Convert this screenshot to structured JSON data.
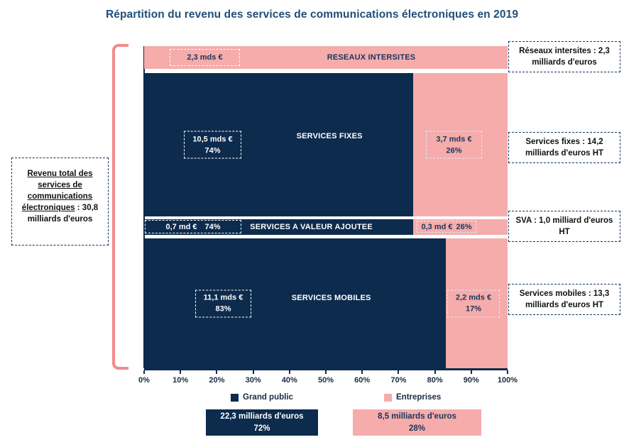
{
  "chart_data": {
    "type": "bar",
    "orientation": "horizontal",
    "stacked": true,
    "title": "Répartition du revenu des services de communications électroniques en 2019",
    "x_axis": {
      "range": [
        0,
        100
      ],
      "grid": false,
      "ticks": [
        "0%",
        "10%",
        "20%",
        "30%",
        "40%",
        "50%",
        "60%",
        "70%",
        "80%",
        "90%",
        "100%"
      ]
    },
    "legend": {
      "position": "bottom",
      "entries": [
        {
          "label": "Grand public",
          "color": "#0d2b4d"
        },
        {
          "label": "Entreprises",
          "color": "#f5acab"
        }
      ]
    },
    "rows": [
      {
        "category": "RESEAUX INTERSITES",
        "segments": [
          {
            "series": "Entreprises",
            "pct": 100,
            "value": "2,3 mds €",
            "pct_label": ""
          }
        ]
      },
      {
        "category": "SERVICES FIXES",
        "segments": [
          {
            "series": "Grand public",
            "pct": 74,
            "value": "10,5 mds €",
            "pct_label": "74%"
          },
          {
            "series": "Entreprises",
            "pct": 26,
            "value": "3,7 mds €",
            "pct_label": "26%"
          }
        ]
      },
      {
        "category": "SERVICES A VALEUR AJOUTEE",
        "segments": [
          {
            "series": "Grand public",
            "pct": 74,
            "value": "0,7 md €",
            "pct_label": "74%"
          },
          {
            "series": "Entreprises",
            "pct": 26,
            "value": "0,3 md €",
            "pct_label": "26%"
          }
        ]
      },
      {
        "category": "SERVICES MOBILES",
        "segments": [
          {
            "series": "Grand public",
            "pct": 83,
            "value": "11,1 mds €",
            "pct_label": "83%"
          },
          {
            "series": "Entreprises",
            "pct": 17,
            "value": "2,2 mds €",
            "pct_label": "17%"
          }
        ]
      }
    ],
    "totals": [
      {
        "series": "Grand public",
        "value": "22,3 milliards d'euros",
        "pct": "72%"
      },
      {
        "series": "Entreprises",
        "value": "8,5 milliards d'euros",
        "pct": "28%"
      }
    ]
  },
  "annotations": {
    "total_left": {
      "underlined": "Revenu total des services de communications électroniques",
      "rest": " : 30,8 milliards d'euros"
    },
    "right": [
      "Réseaux intersites : 2,3 milliards d'euros",
      "Services fixes : 14,2 milliards d'euros HT",
      "SVA : 1,0 milliard d'euros HT",
      "Services mobiles : 13,3 milliards d'euros HT"
    ]
  },
  "colors": {
    "grand_public": "#0d2b4d",
    "entreprises": "#f5acab",
    "bracket": "#f28b8b",
    "title_text": "#1f4e79",
    "annotation_border": "#17365d"
  }
}
